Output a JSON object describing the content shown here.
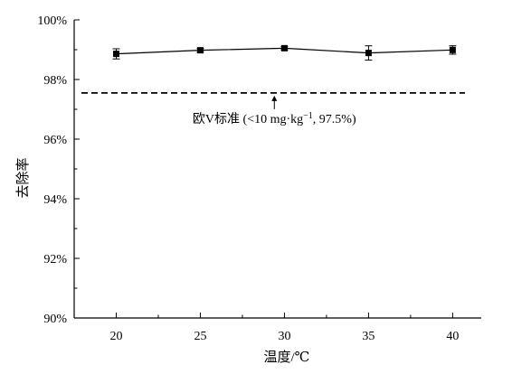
{
  "chart_data": {
    "type": "line",
    "title": "",
    "xlabel": "温度/℃",
    "ylabel": "去除率",
    "x": [
      20,
      25,
      30,
      35,
      40
    ],
    "xlim": [
      17.5,
      41.7
    ],
    "xticks": [
      20,
      25,
      30,
      35,
      40
    ],
    "ylim": [
      90,
      100
    ],
    "yticks": [
      90,
      92,
      94,
      96,
      98,
      100
    ],
    "ytick_labels": [
      "90%",
      "92%",
      "94%",
      "96%",
      "98%",
      "100%"
    ],
    "grid": false,
    "series": [
      {
        "values": [
          98.86,
          98.98,
          99.05,
          98.89,
          98.99
        ],
        "errors": [
          0.17,
          0.06,
          0.06,
          0.24,
          0.14
        ],
        "marker": "square",
        "color": "#000000"
      }
    ],
    "reference_line": {
      "y": 97.55,
      "style": "dashed",
      "label_prefix": "欧V标准 (<10 mg·kg",
      "label_sup": "−1",
      "label_suffix": ", 97.5%)",
      "arrow_x": 29.4
    }
  }
}
